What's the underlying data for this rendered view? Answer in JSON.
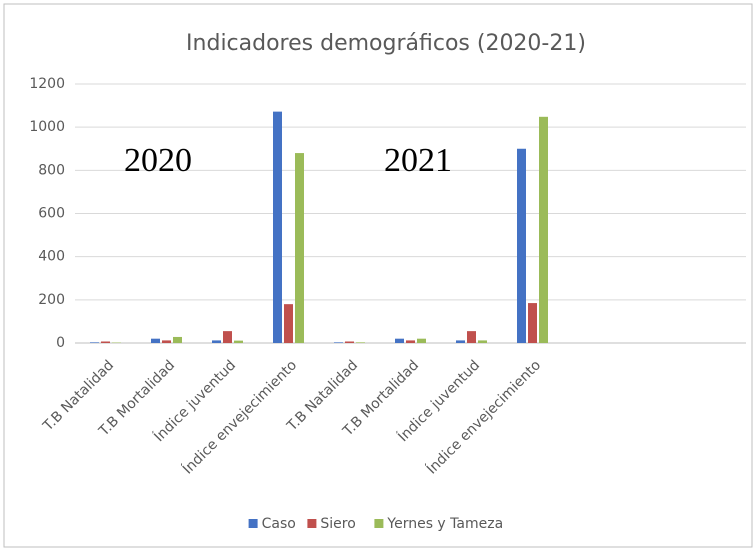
{
  "chart_data": {
    "type": "bar",
    "title": "Indicadores demográficos (2020-21)",
    "categories": [
      "T.B Natalidad",
      "T.B Mortalidad",
      "Índice juventud",
      "Índice envejecimiento",
      "T.B Natalidad",
      "T.B Mortalidad",
      "Índice juventud",
      "Índice envejecimiento",
      null,
      null,
      null
    ],
    "series": [
      {
        "name": "Caso",
        "color": "#4472c4",
        "values": [
          3,
          20,
          12,
          1072,
          3,
          20,
          12,
          900,
          null,
          null,
          null
        ]
      },
      {
        "name": "Siero",
        "color": "#c0504d",
        "values": [
          7,
          12,
          55,
          180,
          7,
          12,
          55,
          185,
          null,
          null,
          null
        ]
      },
      {
        "name": "Yernes y Tameza",
        "color": "#9bbb59",
        "values": [
          2,
          28,
          11,
          880,
          3,
          20,
          12,
          1048,
          null,
          null,
          null
        ]
      }
    ],
    "annotations": [
      "2020",
      "2021"
    ],
    "ylim": [
      0,
      1200
    ],
    "yticks": [
      0,
      200,
      400,
      600,
      800,
      1000,
      1200
    ],
    "grid": true,
    "legend": "bottom"
  }
}
